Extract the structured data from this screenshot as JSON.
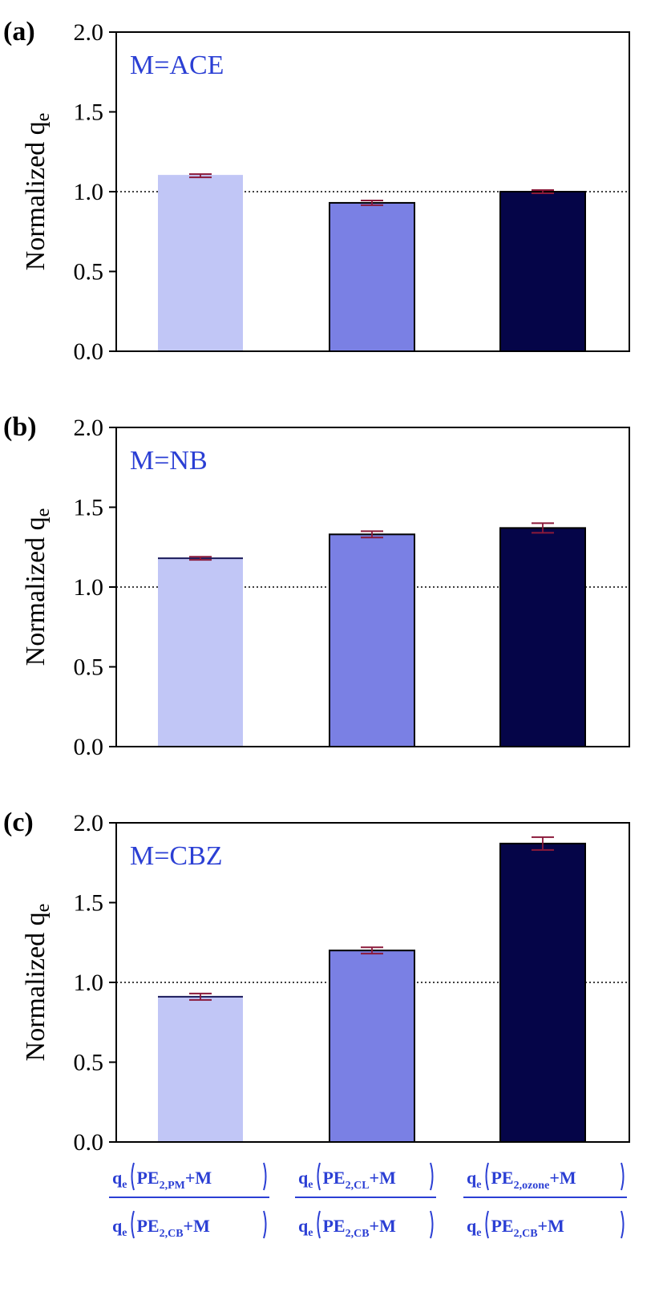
{
  "chart_data": [
    {
      "type": "bar",
      "panel_label": "(a)",
      "annotation": "M=ACE",
      "ylabel_main": "Normalized q",
      "ylabel_sub": "e",
      "ylim": [
        0,
        2.0
      ],
      "yticks": [
        "0.0",
        "0.5",
        "1.0",
        "1.5",
        "2.0"
      ],
      "reference_line": 1.0,
      "values": [
        1.1,
        0.93,
        1.0
      ],
      "errors": [
        0.01,
        0.015,
        0.01
      ],
      "bar_colors": [
        "#c1c6f6",
        "#7a80e4",
        "#050548"
      ]
    },
    {
      "type": "bar",
      "panel_label": "(b)",
      "annotation": "M=NB",
      "ylabel_main": "Normalized q",
      "ylabel_sub": "e",
      "ylim": [
        0,
        2.0
      ],
      "yticks": [
        "0.0",
        "0.5",
        "1.0",
        "1.5",
        "2.0"
      ],
      "reference_line": 1.0,
      "values": [
        1.18,
        1.33,
        1.37
      ],
      "errors": [
        0.01,
        0.02,
        0.03
      ],
      "bar_colors": [
        "#c1c6f6",
        "#7a80e4",
        "#050548"
      ]
    },
    {
      "type": "bar",
      "panel_label": "(c)",
      "annotation": "M=CBZ",
      "ylabel_main": "Normalized q",
      "ylabel_sub": "e",
      "ylim": [
        0,
        2.0
      ],
      "yticks": [
        "0.0",
        "0.5",
        "1.0",
        "1.5",
        "2.0"
      ],
      "reference_line": 1.0,
      "values": [
        0.91,
        1.2,
        1.87
      ],
      "errors": [
        0.02,
        0.02,
        0.04
      ],
      "bar_colors": [
        "#c1c6f6",
        "#7a80e4",
        "#050548"
      ]
    }
  ],
  "categories": [
    {
      "num_q": "q",
      "num_q_sub": "e",
      "num_pe": "PE",
      "num_sub": "2,PM",
      "num_tail": "+M",
      "den_q": "q",
      "den_q_sub": "e",
      "den_pe": "PE",
      "den_sub": "2,CB",
      "den_tail": "+M"
    },
    {
      "num_q": "q",
      "num_q_sub": "e",
      "num_pe": "PE",
      "num_sub": "2,CL",
      "num_tail": "+M",
      "den_q": "q",
      "den_q_sub": "e",
      "den_pe": "PE",
      "den_sub": "2,CB",
      "den_tail": "+M"
    },
    {
      "num_q": "q",
      "num_q_sub": "e",
      "num_pe": "PE",
      "num_sub": "2,ozone",
      "num_tail": "+M",
      "den_q": "q",
      "den_q_sub": "e",
      "den_pe": "PE",
      "den_sub": "2,CB",
      "den_tail": "+M"
    }
  ],
  "colors": {
    "error_bar": "#8b1a3a",
    "annotation": "#2b3fd4",
    "axis": "#000000"
  }
}
